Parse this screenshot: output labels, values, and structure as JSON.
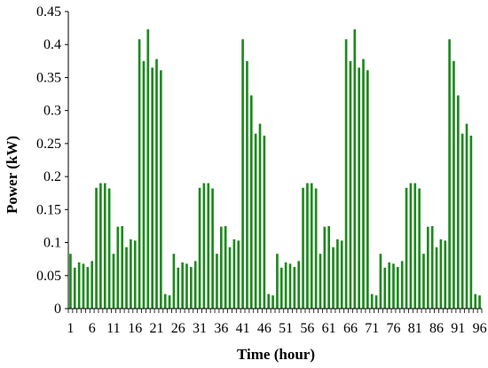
{
  "chart_data": {
    "type": "bar",
    "xlabel": "Time (hour)",
    "ylabel": "Power (kW)",
    "ylim": [
      0,
      0.45
    ],
    "yticks": [
      0,
      0.05,
      0.1,
      0.15,
      0.2,
      0.25,
      0.3,
      0.35,
      0.4,
      0.45
    ],
    "ytick_labels": [
      "0",
      "0.05",
      "0.1",
      "0.15",
      "0.2",
      "0.25",
      "0.3",
      "0.35",
      "0.4",
      "0.45"
    ],
    "xtick_labels": [
      "1",
      "6",
      "11",
      "16",
      "21",
      "26",
      "31",
      "36",
      "41",
      "46",
      "51",
      "56",
      "61",
      "66",
      "71",
      "76",
      "81",
      "86",
      "91",
      "96"
    ],
    "bar_color": "#1e8a1e",
    "grid": false,
    "categories": [
      1,
      2,
      3,
      4,
      5,
      6,
      7,
      8,
      9,
      10,
      11,
      12,
      13,
      14,
      15,
      16,
      17,
      18,
      19,
      20,
      21,
      22,
      23,
      24,
      25,
      26,
      27,
      28,
      29,
      30,
      31,
      32,
      33,
      34,
      35,
      36,
      37,
      38,
      39,
      40,
      41,
      42,
      43,
      44,
      45,
      46,
      47,
      48,
      49,
      50,
      51,
      52,
      53,
      54,
      55,
      56,
      57,
      58,
      59,
      60,
      61,
      62,
      63,
      64,
      65,
      66,
      67,
      68,
      69,
      70,
      71,
      72,
      73,
      74,
      75,
      76,
      77,
      78,
      79,
      80,
      81,
      82,
      83,
      84,
      85,
      86,
      87,
      88,
      89,
      90,
      91,
      92,
      93,
      94,
      95,
      96
    ],
    "values": [
      0.083,
      0.062,
      0.07,
      0.068,
      0.063,
      0.072,
      0.183,
      0.19,
      0.19,
      0.182,
      0.083,
      0.124,
      0.125,
      0.093,
      0.105,
      0.103,
      0.408,
      0.375,
      0.423,
      0.365,
      0.378,
      0.361,
      0.022,
      0.02,
      0.083,
      0.062,
      0.07,
      0.068,
      0.063,
      0.072,
      0.183,
      0.19,
      0.19,
      0.182,
      0.083,
      0.124,
      0.125,
      0.093,
      0.105,
      0.103,
      0.408,
      0.375,
      0.323,
      0.265,
      0.28,
      0.262,
      0.022,
      0.02,
      0.083,
      0.062,
      0.07,
      0.068,
      0.063,
      0.072,
      0.183,
      0.19,
      0.19,
      0.182,
      0.083,
      0.124,
      0.125,
      0.093,
      0.105,
      0.103,
      0.408,
      0.375,
      0.423,
      0.365,
      0.378,
      0.361,
      0.022,
      0.02,
      0.083,
      0.062,
      0.07,
      0.068,
      0.063,
      0.072,
      0.183,
      0.19,
      0.19,
      0.182,
      0.083,
      0.124,
      0.125,
      0.093,
      0.105,
      0.103,
      0.408,
      0.375,
      0.323,
      0.265,
      0.28,
      0.262,
      0.022,
      0.02
    ]
  }
}
